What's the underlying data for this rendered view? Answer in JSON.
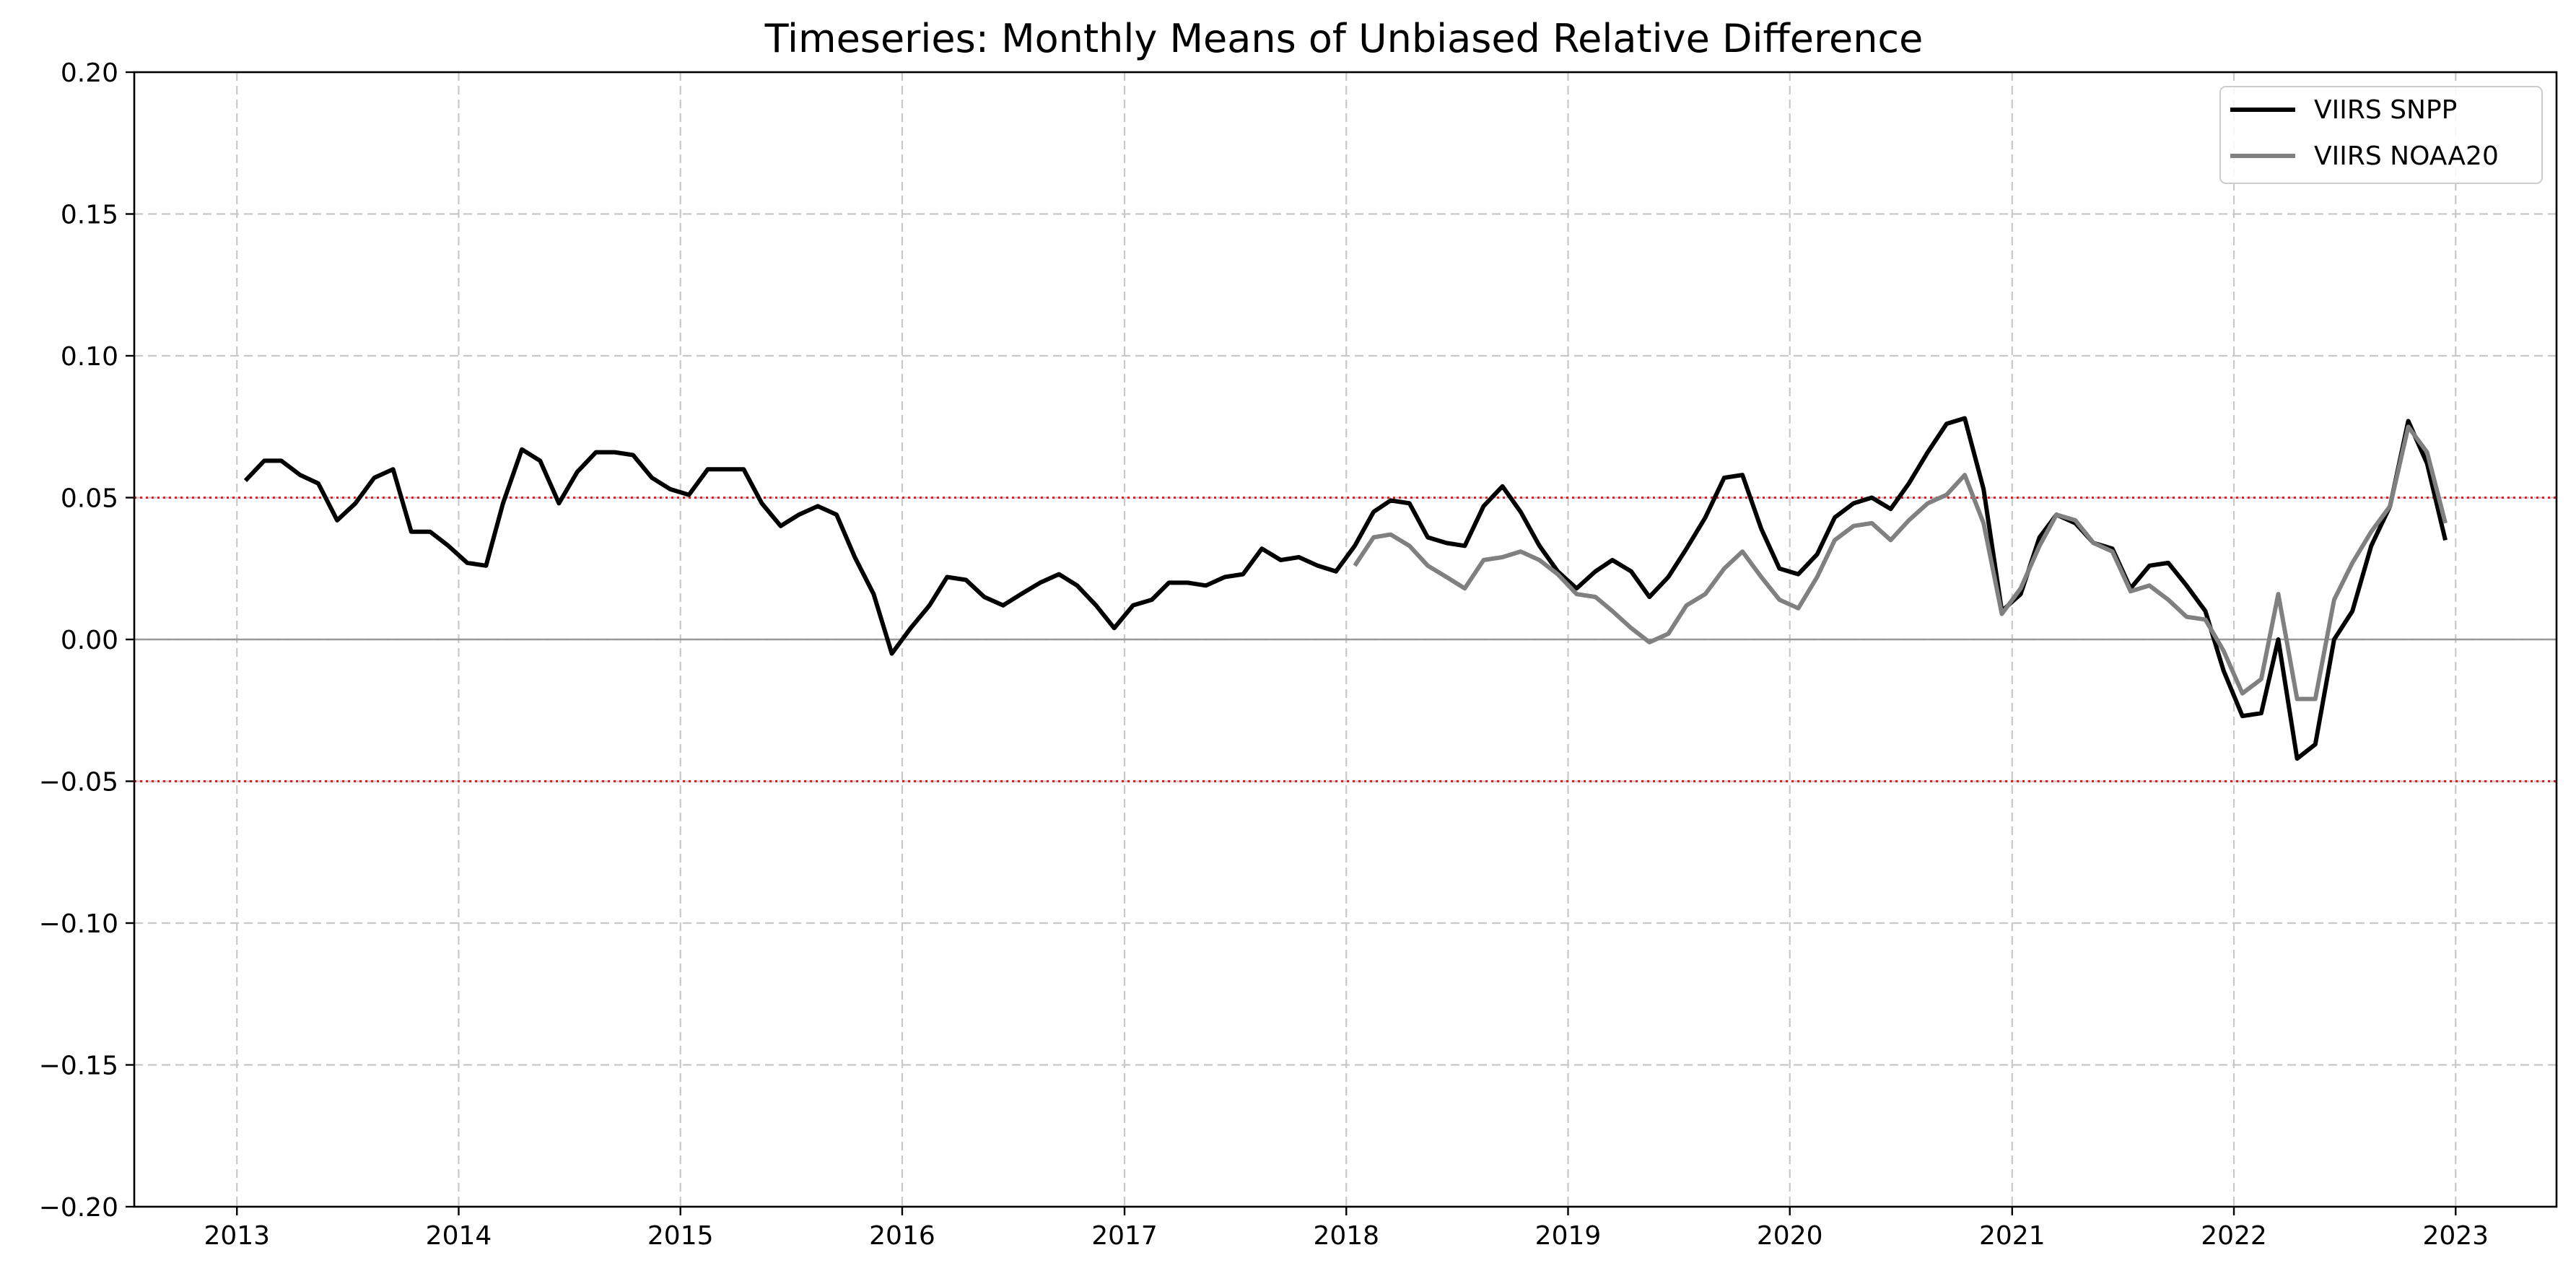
{
  "chart_data": {
    "type": "line",
    "title": "Timeseries: Monthly Means of Unbiased Relative Difference",
    "xlabel": "",
    "ylabel": "",
    "x_axis": {
      "type": "date",
      "range": [
        "2012-07-16",
        "2023-06-16"
      ],
      "ticks": [
        "2013",
        "2014",
        "2015",
        "2016",
        "2017",
        "2018",
        "2019",
        "2020",
        "2021",
        "2022",
        "2023"
      ],
      "tick_values": [
        "2013-01-01",
        "2014-01-01",
        "2015-01-01",
        "2016-01-01",
        "2017-01-01",
        "2018-01-01",
        "2019-01-01",
        "2020-01-01",
        "2021-01-01",
        "2022-01-01",
        "2023-01-01"
      ]
    },
    "y_axis": {
      "ylim": [
        -0.2,
        0.2
      ],
      "ticks": [
        -0.2,
        -0.15,
        -0.1,
        -0.05,
        0.0,
        0.05,
        0.1,
        0.15,
        0.2
      ],
      "tick_labels": [
        "−0.20",
        "−0.15",
        "−0.10",
        "−0.05",
        "0.00",
        "0.05",
        "0.10",
        "0.15",
        "0.20"
      ]
    },
    "grid": true,
    "grid_style": "dashed",
    "legend_position": "top-right",
    "reference_lines": [
      {
        "y": 0.05,
        "color": "#e41a1c",
        "style": "dotted"
      },
      {
        "y": -0.05,
        "color": "#e41a1c",
        "style": "dotted"
      },
      {
        "y": 0.0,
        "color": "#999999",
        "style": "solid"
      }
    ],
    "series": [
      {
        "name": "VIIRS SNPP",
        "color": "#000000",
        "start": "2013-01",
        "values": [
          0.056,
          0.063,
          0.063,
          0.058,
          0.055,
          0.042,
          0.048,
          0.057,
          0.06,
          0.038,
          0.038,
          0.033,
          0.027,
          0.026,
          0.048,
          0.067,
          0.063,
          0.048,
          0.059,
          0.066,
          0.066,
          0.065,
          0.057,
          0.053,
          0.051,
          0.06,
          0.06,
          0.06,
          0.048,
          0.04,
          0.044,
          0.047,
          0.044,
          0.029,
          0.016,
          -0.005,
          0.004,
          0.012,
          0.022,
          0.021,
          0.015,
          0.012,
          0.016,
          0.02,
          0.023,
          0.019,
          0.012,
          0.004,
          0.012,
          0.014,
          0.02,
          0.02,
          0.019,
          0.022,
          0.023,
          0.032,
          0.028,
          0.029,
          0.026,
          0.024,
          0.033,
          0.045,
          0.049,
          0.048,
          0.036,
          0.034,
          0.033,
          0.047,
          0.054,
          0.045,
          0.033,
          0.024,
          0.018,
          0.024,
          0.028,
          0.024,
          0.015,
          0.022,
          0.032,
          0.043,
          0.057,
          0.058,
          0.039,
          0.025,
          0.023,
          0.03,
          0.043,
          0.048,
          0.05,
          0.046,
          0.055,
          0.066,
          0.076,
          0.078,
          0.053,
          0.01,
          0.016,
          0.036,
          0.044,
          0.041,
          0.034,
          0.032,
          0.018,
          0.026,
          0.027,
          0.019,
          0.01,
          -0.011,
          -0.027,
          -0.026,
          0.0,
          -0.042,
          -0.037,
          0.0,
          0.01,
          0.033,
          0.047,
          0.077,
          0.062,
          0.035
        ]
      },
      {
        "name": "VIIRS NOAA20",
        "color": "#808080",
        "start": "2018-01",
        "values": [
          0.026,
          0.036,
          0.037,
          0.033,
          0.026,
          0.022,
          0.018,
          0.028,
          0.029,
          0.031,
          0.028,
          0.023,
          0.016,
          0.015,
          0.01,
          0.004,
          -0.001,
          0.002,
          0.012,
          0.016,
          0.025,
          0.031,
          0.022,
          0.014,
          0.011,
          0.022,
          0.035,
          0.04,
          0.041,
          0.035,
          0.042,
          0.048,
          0.051,
          0.058,
          0.041,
          0.009,
          0.018,
          0.033,
          0.044,
          0.042,
          0.034,
          0.031,
          0.017,
          0.019,
          0.014,
          0.008,
          0.007,
          -0.004,
          -0.019,
          -0.014,
          0.016,
          -0.021,
          -0.021,
          0.014,
          0.027,
          0.038,
          0.047,
          0.075,
          0.066,
          0.041
        ]
      }
    ]
  }
}
